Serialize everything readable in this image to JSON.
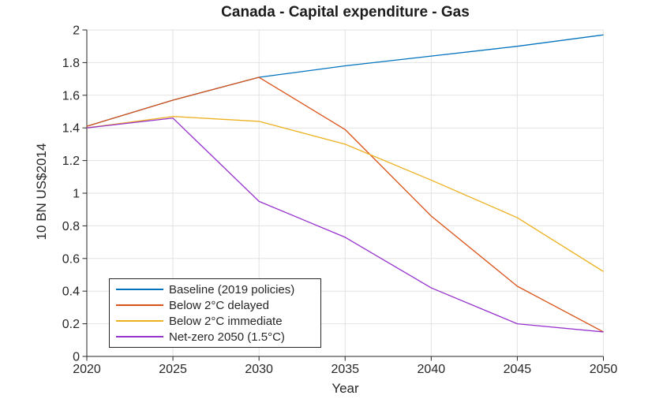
{
  "figure": {
    "background": "#ffffff"
  },
  "chart_data": {
    "type": "line",
    "title": "Canada - Capital expenditure - Gas",
    "xlabel": "Year",
    "ylabel": "10 BN US$2014",
    "x": [
      2020,
      2025,
      2030,
      2035,
      2040,
      2045,
      2050
    ],
    "xlim": [
      2020,
      2050
    ],
    "ylim": [
      0,
      2
    ],
    "xticks": {
      "values": [
        2020,
        2025,
        2030,
        2035,
        2040,
        2045,
        2050
      ],
      "labels": [
        "2020",
        "2025",
        "2030",
        "2035",
        "2040",
        "2045",
        "2050"
      ]
    },
    "yticks": {
      "values": [
        0,
        0.2,
        0.4,
        0.6,
        0.8,
        1,
        1.2,
        1.4,
        1.6,
        1.8,
        2
      ],
      "labels": [
        "0",
        "0.2",
        "0.4",
        "0.6",
        "0.8",
        "1",
        "1.2",
        "1.4",
        "1.6",
        "1.8",
        "2"
      ]
    },
    "grid": true,
    "legend": {
      "position": "lower-left"
    },
    "series": [
      {
        "name": "Baseline (2019 policies)",
        "color": "#0072BD",
        "values": [
          1.41,
          1.57,
          1.71,
          1.78,
          1.84,
          1.9,
          1.97
        ]
      },
      {
        "name": "Below 2°C delayed",
        "color": "#D95319",
        "values": [
          1.41,
          1.57,
          1.71,
          1.39,
          0.86,
          0.43,
          0.15
        ]
      },
      {
        "name": "Below 2°C immediate",
        "color": "#EDB120",
        "values": [
          1.4,
          1.47,
          1.44,
          1.3,
          1.08,
          0.85,
          0.52
        ]
      },
      {
        "name": "Net-zero 2050 (1.5°C)",
        "color": "#9632CD",
        "values": [
          1.4,
          1.46,
          0.95,
          0.73,
          0.42,
          0.2,
          0.15
        ]
      }
    ]
  },
  "style": {
    "axis_color": "#262626",
    "grid_color": "#e2e2e2",
    "text_color": "#262626",
    "title_color": "#1c1c1c",
    "line_width": 1.3
  }
}
